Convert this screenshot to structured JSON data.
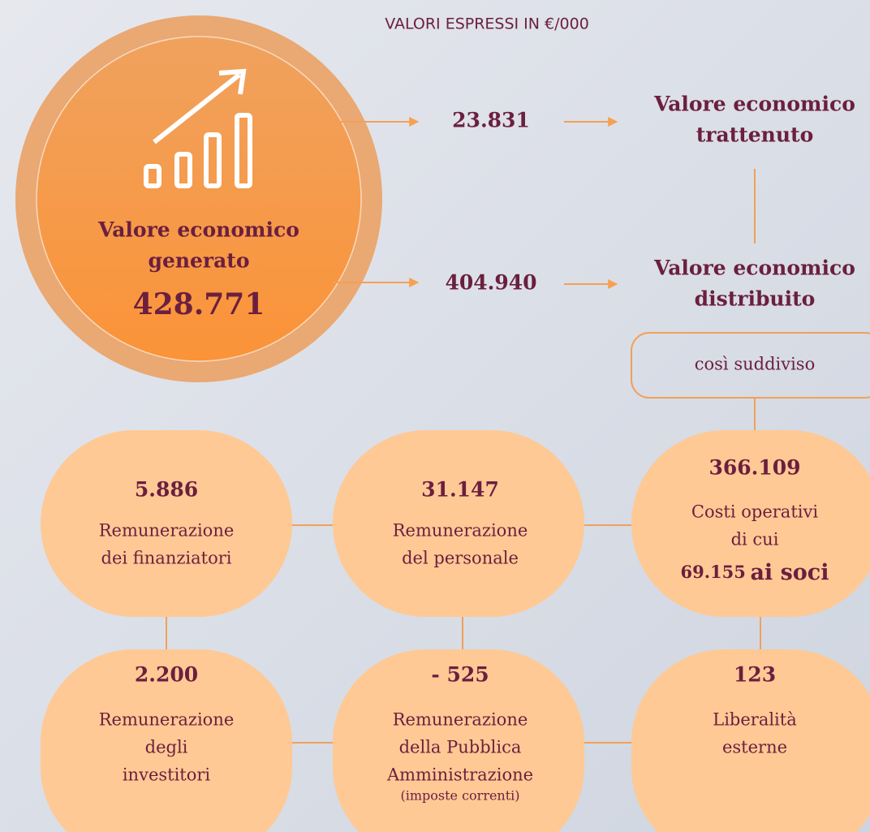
{
  "header": {
    "note": "VALORI ESPRESSI IN €/000"
  },
  "generated": {
    "label": [
      "Valore economico",
      "generato"
    ],
    "value": "428.771"
  },
  "flows": [
    {
      "value": "23.831",
      "target": [
        "Valore economico",
        "trattenuto"
      ]
    },
    {
      "value": "404.940",
      "target": [
        "Valore economico",
        "distribuito"
      ]
    }
  ],
  "split_label": "così suddiviso",
  "nodes": [
    {
      "value": "5.886",
      "label": [
        "Remunerazione",
        "dei finanziatori"
      ]
    },
    {
      "value": "31.147",
      "label": [
        "Remunerazione",
        "del personale"
      ]
    },
    {
      "value": "366.109",
      "label": [
        "Costi operativi",
        "di cui"
      ],
      "highlight": [
        "69.155",
        "ai soci"
      ]
    },
    {
      "value": "2.200",
      "label": [
        "Remunerazione",
        "degli",
        "investitori"
      ]
    },
    {
      "value": "- 525",
      "label": [
        "Remunerazione",
        "della Pubblica",
        "Amministrazione"
      ],
      "note": "(imposte correnti)"
    },
    {
      "value": "123",
      "label": [
        "Liberalità",
        "esterne"
      ]
    }
  ]
}
